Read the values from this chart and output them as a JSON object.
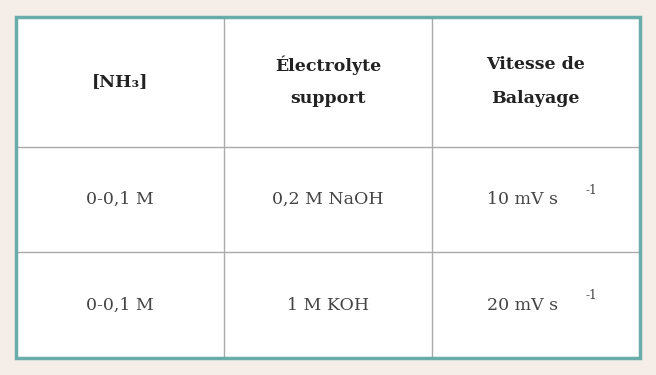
{
  "headers_line1": [
    "[NH₃]",
    "Électrolyte",
    "Vitesse de"
  ],
  "headers_line2": [
    "",
    "support",
    "Balayage"
  ],
  "row1": [
    "0-0,1 M",
    "0,2 M NaOH",
    "10 mV s"
  ],
  "row2": [
    "0-0,1 M",
    "1 M KOH",
    "20 mV s"
  ],
  "superscripts": [
    "-1",
    "-1"
  ],
  "outer_border_color": "#6aabab",
  "inner_line_color": "#aaaaaa",
  "bg_color": "#f5eee8",
  "table_bg": "#ffffff",
  "header_text_color": "#222222",
  "cell_text_color": "#444444",
  "header_fontsize": 12.5,
  "cell_fontsize": 12.5,
  "fig_width": 6.56,
  "fig_height": 3.75,
  "dpi": 100
}
